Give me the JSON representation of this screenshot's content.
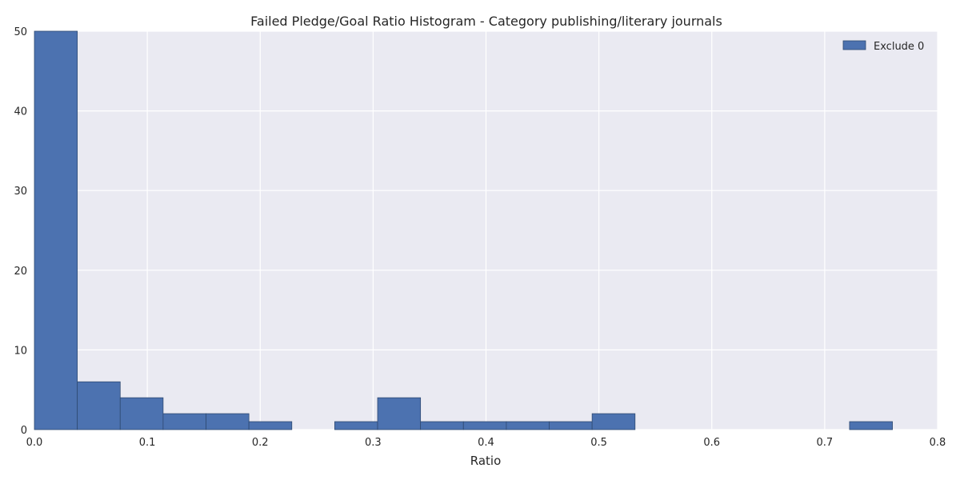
{
  "chart_data": {
    "type": "bar",
    "title": "Failed Pledge/Goal Ratio Histogram - Category publishing/literary journals",
    "xlabel": "Ratio",
    "ylabel": "",
    "xlim": [
      0.0,
      0.8
    ],
    "ylim": [
      0,
      50
    ],
    "xticks": [
      0.0,
      0.1,
      0.2,
      0.3,
      0.4,
      0.5,
      0.6,
      0.7,
      0.8
    ],
    "xtick_labels": [
      "0.0",
      "0.1",
      "0.2",
      "0.3",
      "0.4",
      "0.5",
      "0.6",
      "0.7",
      "0.8"
    ],
    "yticks": [
      0,
      10,
      20,
      30,
      40,
      50
    ],
    "ytick_labels": [
      "0",
      "10",
      "20",
      "30",
      "40",
      "50"
    ],
    "grid": true,
    "legend_position": "top-right",
    "series": [
      {
        "name": "Exclude 0",
        "color": "#4c72b0",
        "bin_edges": [
          0.0,
          0.038,
          0.076,
          0.114,
          0.152,
          0.19,
          0.228,
          0.266,
          0.304,
          0.342,
          0.38,
          0.418,
          0.456,
          0.494,
          0.532,
          0.57,
          0.608,
          0.646,
          0.684,
          0.722,
          0.76
        ],
        "values": [
          50,
          6,
          4,
          2,
          2,
          1,
          0,
          1,
          4,
          1,
          1,
          1,
          1,
          2,
          0,
          0,
          0,
          0,
          0,
          1
        ]
      }
    ],
    "colors": {
      "plot_background": "#eaeaf2",
      "grid": "#ffffff",
      "bar": "#4c72b0",
      "bar_edge": "#2f4a72",
      "text": "#262626"
    }
  }
}
